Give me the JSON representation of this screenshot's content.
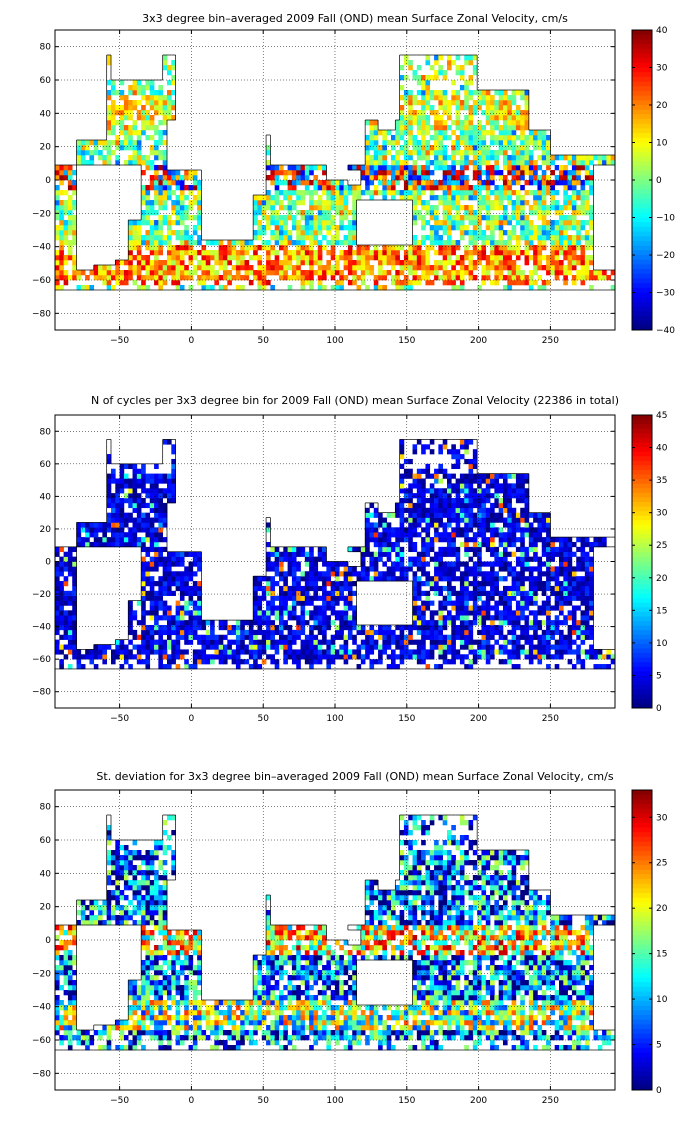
{
  "chart_data": [
    {
      "type": "heatmap",
      "title": "3x3 degree bin–averaged 2009 Fall (OND) mean Surface Zonal Velocity, cm/s",
      "xlabel": "",
      "ylabel": "",
      "xlim": [
        -95,
        295
      ],
      "ylim": [
        -90,
        90
      ],
      "xticks": [
        -50,
        0,
        50,
        100,
        150,
        200,
        250
      ],
      "xtick_labels": [
        "−50",
        "0",
        "50",
        "100",
        "150",
        "200",
        "250"
      ],
      "yticks": [
        80,
        60,
        40,
        20,
        0,
        -20,
        -40,
        -60,
        -80
      ],
      "ytick_labels": [
        "80",
        "60",
        "40",
        "20",
        "0",
        "−20",
        "−40",
        "−60",
        "−80"
      ],
      "grid": true,
      "colorbar": {
        "colormap": "jet",
        "min": -40,
        "max": 40,
        "ticks": [
          40,
          30,
          20,
          10,
          0,
          -10,
          -20,
          -30,
          -40
        ],
        "tick_labels": [
          "40",
          "30",
          "20",
          "10",
          "0",
          "−10",
          "−20",
          "−30",
          "−40"
        ]
      },
      "field": "zonal_mean"
    },
    {
      "type": "heatmap",
      "title": "N of cycles per 3x3 degree bin for 2009 Fall (OND) mean Surface Zonal Velocity (22386 in total)",
      "xlabel": "",
      "ylabel": "",
      "xlim": [
        -95,
        295
      ],
      "ylim": [
        -90,
        90
      ],
      "xticks": [
        -50,
        0,
        50,
        100,
        150,
        200,
        250
      ],
      "xtick_labels": [
        "−50",
        "0",
        "50",
        "100",
        "150",
        "200",
        "250"
      ],
      "yticks": [
        80,
        60,
        40,
        20,
        0,
        -20,
        -40,
        -60,
        -80
      ],
      "ytick_labels": [
        "80",
        "60",
        "40",
        "20",
        "0",
        "−20",
        "−40",
        "−60",
        "−80"
      ],
      "grid": true,
      "total_cycles": 22386,
      "colorbar": {
        "colormap": "jet",
        "min": 0,
        "max": 45,
        "ticks": [
          45,
          40,
          35,
          30,
          25,
          20,
          15,
          10,
          5,
          0
        ],
        "tick_labels": [
          "45",
          "40",
          "35",
          "30",
          "25",
          "20",
          "15",
          "10",
          "5",
          "0"
        ]
      },
      "field": "cycle_count"
    },
    {
      "type": "heatmap",
      "title": "St. deviation for 3x3 degree bin–averaged 2009 Fall (OND) mean Surface Zonal Velocity, cm/s",
      "xlabel": "",
      "ylabel": "",
      "xlim": [
        -95,
        295
      ],
      "ylim": [
        -90,
        90
      ],
      "xticks": [
        -50,
        0,
        50,
        100,
        150,
        200,
        250
      ],
      "xtick_labels": [
        "−50",
        "0",
        "50",
        "100",
        "150",
        "200",
        "250"
      ],
      "yticks": [
        80,
        60,
        40,
        20,
        0,
        -20,
        -40,
        -60,
        -80
      ],
      "ytick_labels": [
        "80",
        "60",
        "40",
        "20",
        "0",
        "−20",
        "−40",
        "−60",
        "−80"
      ],
      "grid": true,
      "colorbar": {
        "colormap": "jet",
        "min": 0,
        "max": 33,
        "ticks": [
          30,
          25,
          20,
          15,
          10,
          5,
          0
        ],
        "tick_labels": [
          "30",
          "25",
          "20",
          "15",
          "10",
          "5",
          "0"
        ]
      },
      "field": "zonal_std"
    }
  ]
}
